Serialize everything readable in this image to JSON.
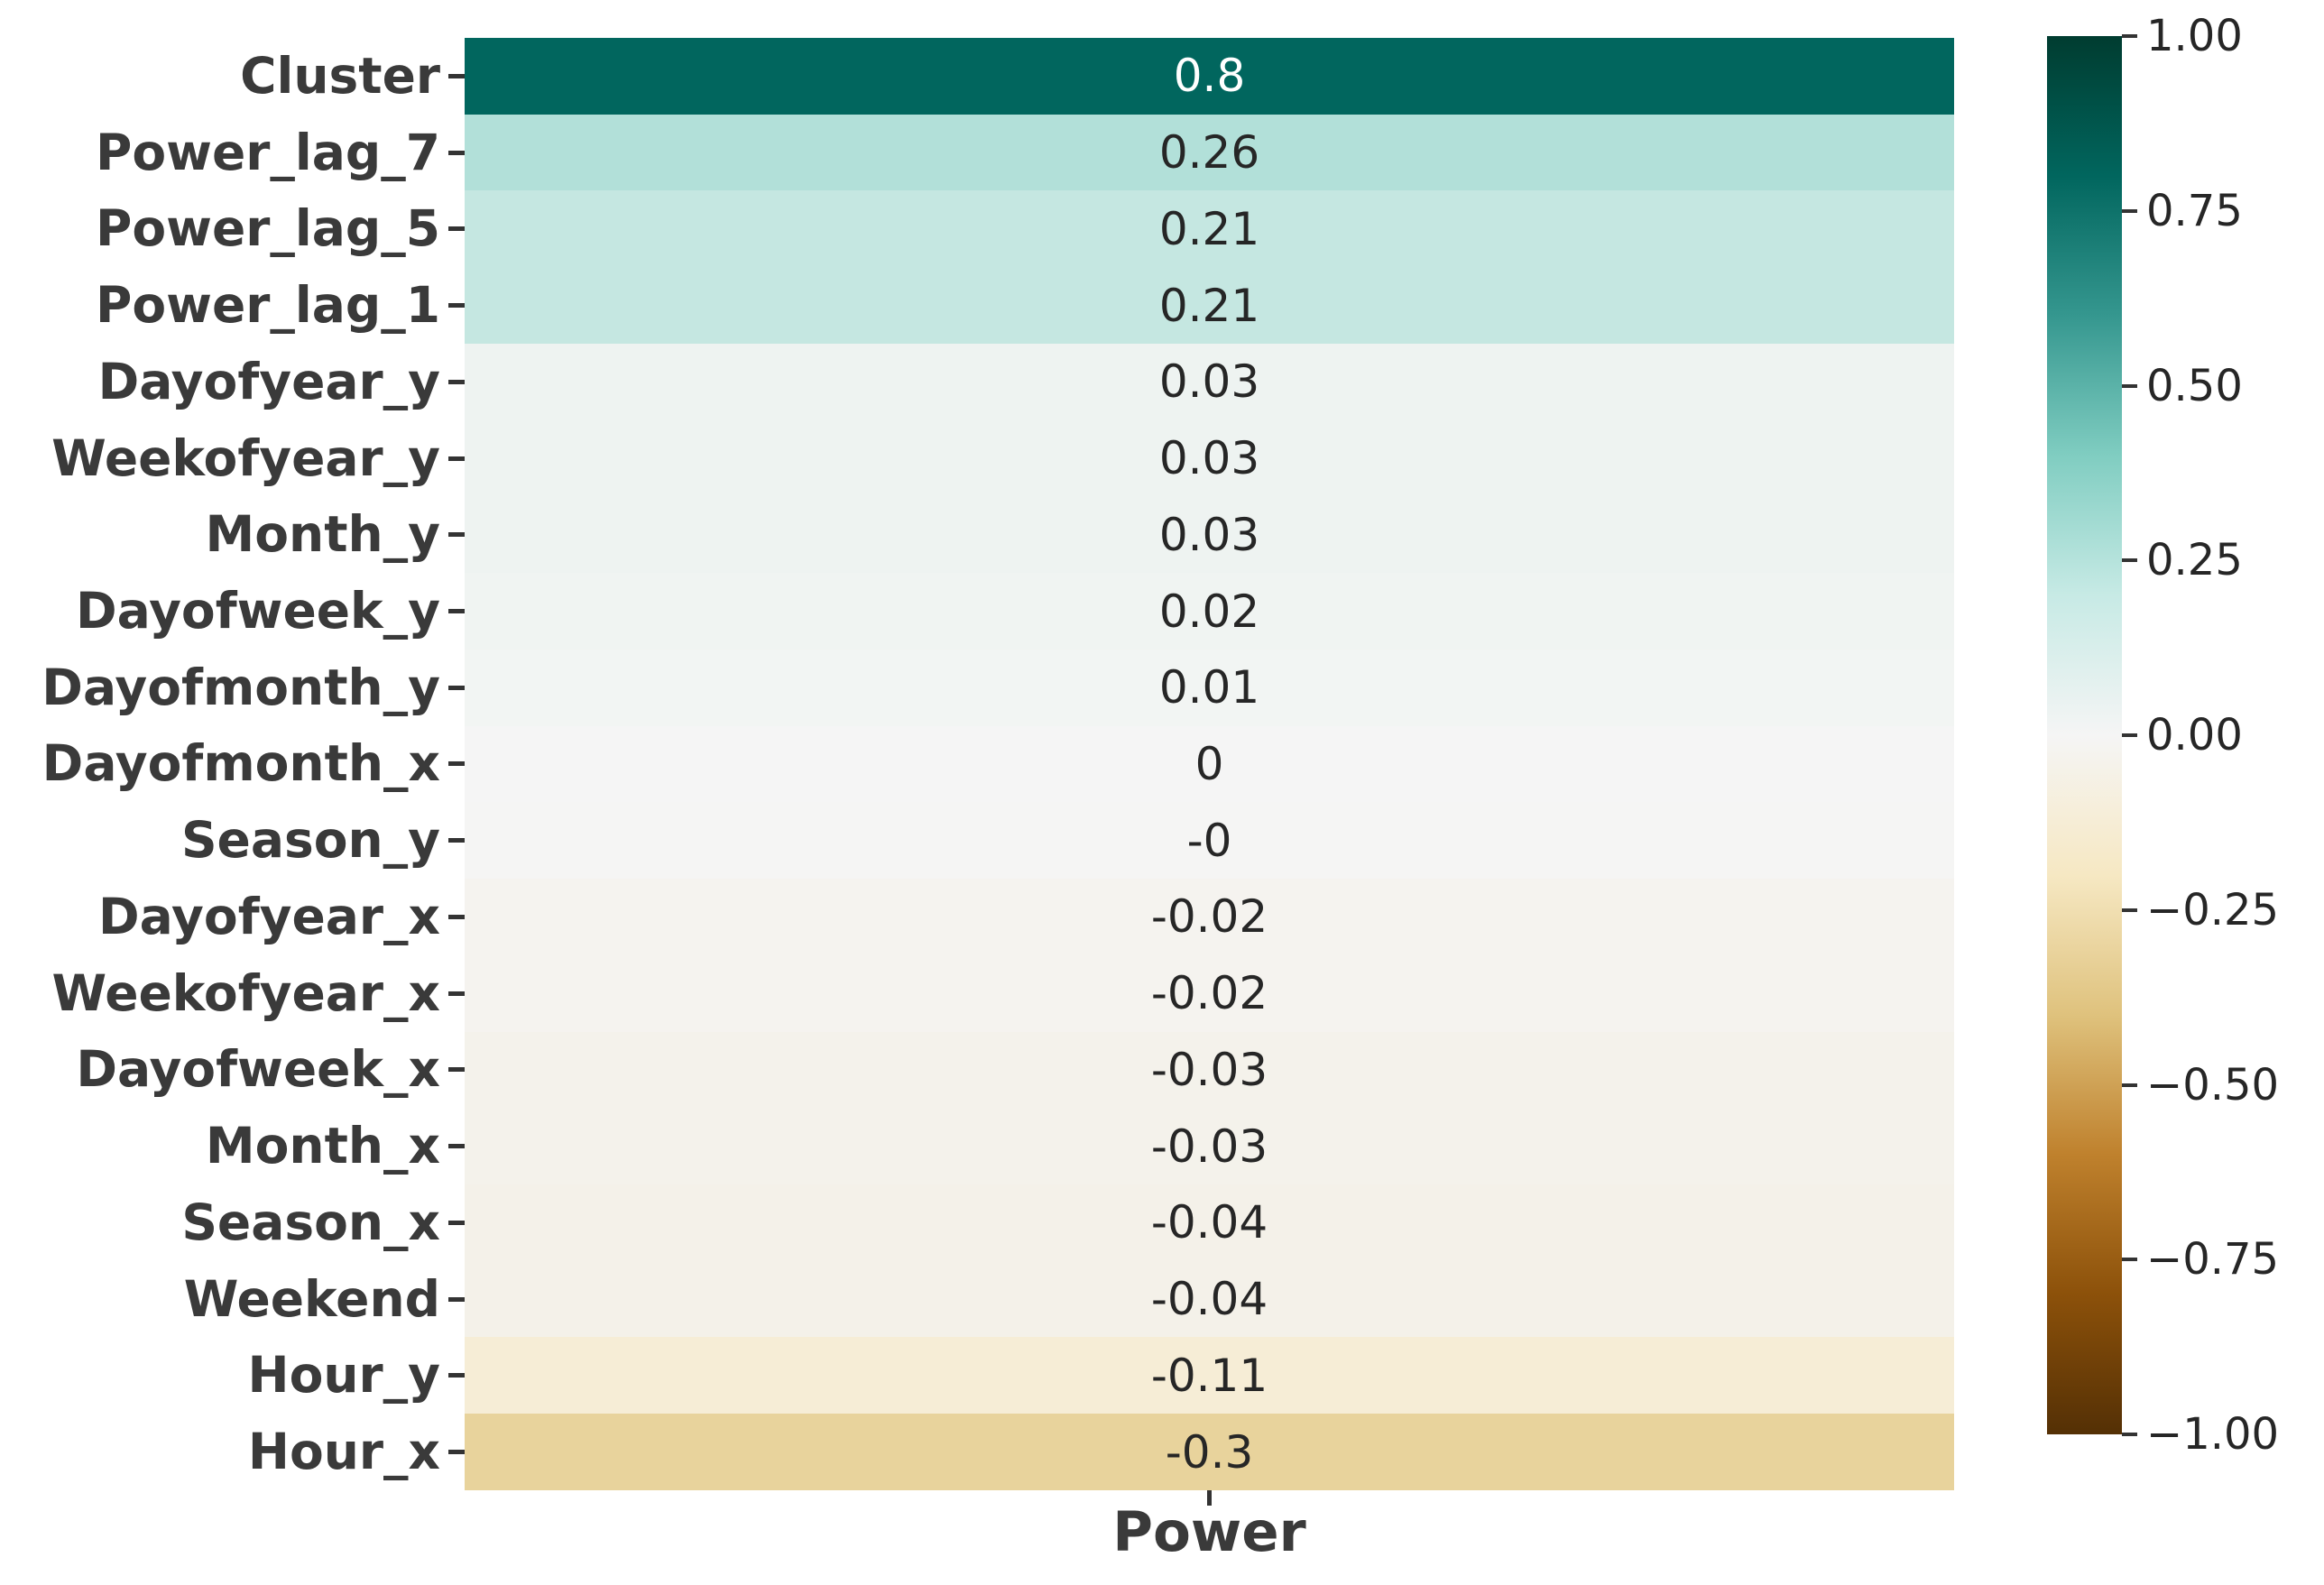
{
  "chart_data": {
    "type": "heatmap",
    "xlabel": "Power",
    "x_categories": [
      "Power"
    ],
    "y_categories": [
      "Cluster",
      "Power_lag_7",
      "Power_lag_5",
      "Power_lag_1",
      "Dayofyear_y",
      "Weekofyear_y",
      "Month_y",
      "Dayofweek_y",
      "Dayofmonth_y",
      "Dayofmonth_x",
      "Season_y",
      "Dayofyear_x",
      "Weekofyear_x",
      "Dayofweek_x",
      "Month_x",
      "Season_x",
      "Weekend",
      "Hour_y",
      "Hour_x"
    ],
    "values": [
      0.8,
      0.26,
      0.21,
      0.21,
      0.03,
      0.03,
      0.03,
      0.02,
      0.01,
      0,
      0,
      -0.02,
      -0.02,
      -0.03,
      -0.03,
      -0.04,
      -0.04,
      -0.11,
      -0.3
    ],
    "colormap": "BrBG",
    "vmin": -1.0,
    "vmax": 1.0,
    "legend_position": "right-colorbar",
    "grid": false,
    "rows": [
      {
        "label": "Cluster",
        "annotation": "0.8",
        "value": 0.8,
        "cell_color": "#01665e",
        "text_color": "#ffffff"
      },
      {
        "label": "Power_lag_7",
        "annotation": "0.26",
        "value": 0.26,
        "cell_color": "#b2e0d9",
        "text_color": "#262626"
      },
      {
        "label": "Power_lag_5",
        "annotation": "0.21",
        "value": 0.21,
        "cell_color": "#c5e7e1",
        "text_color": "#262626"
      },
      {
        "label": "Power_lag_1",
        "annotation": "0.21",
        "value": 0.21,
        "cell_color": "#c5e7e1",
        "text_color": "#262626"
      },
      {
        "label": "Dayofyear_y",
        "annotation": "0.03",
        "value": 0.03,
        "cell_color": "#eef3f1",
        "text_color": "#262626"
      },
      {
        "label": "Weekofyear_y",
        "annotation": "0.03",
        "value": 0.03,
        "cell_color": "#eef3f1",
        "text_color": "#262626"
      },
      {
        "label": "Month_y",
        "annotation": "0.03",
        "value": 0.03,
        "cell_color": "#eef3f1",
        "text_color": "#262626"
      },
      {
        "label": "Dayofweek_y",
        "annotation": "0.02",
        "value": 0.02,
        "cell_color": "#f0f4f2",
        "text_color": "#262626"
      },
      {
        "label": "Dayofmonth_y",
        "annotation": "0.01",
        "value": 0.01,
        "cell_color": "#f2f5f3",
        "text_color": "#262626"
      },
      {
        "label": "Dayofmonth_x",
        "annotation": "0",
        "value": 0.0,
        "cell_color": "#f5f5f5",
        "text_color": "#262626"
      },
      {
        "label": "Season_y",
        "annotation": "-0",
        "value": -0.0,
        "cell_color": "#f5f5f4",
        "text_color": "#262626"
      },
      {
        "label": "Dayofyear_x",
        "annotation": "-0.02",
        "value": -0.02,
        "cell_color": "#f5f3ef",
        "text_color": "#262626"
      },
      {
        "label": "Weekofyear_x",
        "annotation": "-0.02",
        "value": -0.02,
        "cell_color": "#f5f3ef",
        "text_color": "#262626"
      },
      {
        "label": "Dayofweek_x",
        "annotation": "-0.03",
        "value": -0.03,
        "cell_color": "#f4f2eb",
        "text_color": "#262626"
      },
      {
        "label": "Month_x",
        "annotation": "-0.03",
        "value": -0.03,
        "cell_color": "#f4f2eb",
        "text_color": "#262626"
      },
      {
        "label": "Season_x",
        "annotation": "-0.04",
        "value": -0.04,
        "cell_color": "#f4f1e9",
        "text_color": "#262626"
      },
      {
        "label": "Weekend",
        "annotation": "-0.04",
        "value": -0.04,
        "cell_color": "#f4f1e9",
        "text_color": "#262626"
      },
      {
        "label": "Hour_y",
        "annotation": "-0.11",
        "value": -0.11,
        "cell_color": "#f6edd6",
        "text_color": "#262626"
      },
      {
        "label": "Hour_x",
        "annotation": "-0.3",
        "value": -0.3,
        "cell_color": "#e8d39c",
        "text_color": "#262626"
      }
    ],
    "colorbar": {
      "tick_labels": [
        "1.00",
        "0.75",
        "0.50",
        "0.25",
        "0.00",
        "−0.25",
        "−0.50",
        "−0.75",
        "−1.00"
      ],
      "gradient_stops_top_to_bottom": [
        "#003c30",
        "#01665e",
        "#35978f",
        "#80cdc1",
        "#c7eae5",
        "#f5f5f5",
        "#f6e8c3",
        "#dfc27d",
        "#bf812d",
        "#8c510a",
        "#543005"
      ]
    }
  },
  "colors": {
    "background": "#ffffff",
    "tick_color": "#333333",
    "axis_label_color": "#3a3a3a",
    "annotation_color": "#262626"
  }
}
